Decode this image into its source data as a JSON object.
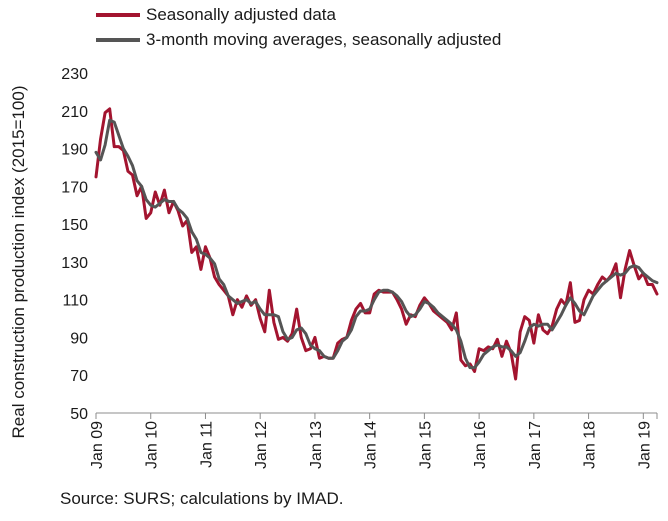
{
  "chart_data": {
    "type": "line",
    "title": "",
    "xlabel": "",
    "ylabel": "Real construction production index (2015=100)",
    "ylim": [
      50,
      230
    ],
    "yticks": [
      50,
      70,
      90,
      110,
      130,
      150,
      170,
      190,
      210,
      230
    ],
    "x_tick_labels": [
      "Jan 09",
      "Jan 10",
      "Jan 11",
      "Jan 12",
      "Jan 13",
      "Jan 14",
      "Jan 15",
      "Jan 16",
      "Jan 17",
      "Jan 18",
      "Jan 19"
    ],
    "x_start": "Jan 09",
    "frequency": "monthly",
    "grid": false,
    "legend_position": "top-left",
    "source": "Source: SURS; calculations by IMAD.",
    "series": [
      {
        "name": "Seasonally adjusted data",
        "color": "#a3142f",
        "values": [
          175,
          195,
          209,
          211,
          191,
          191,
          189,
          178,
          176,
          165,
          170,
          153,
          156,
          167,
          160,
          168,
          156,
          162,
          157,
          149,
          152,
          135,
          138,
          126,
          138,
          132,
          122,
          118,
          115,
          112,
          102,
          110,
          106,
          112,
          107,
          110,
          100,
          93,
          115,
          98,
          89,
          90,
          88,
          92,
          105,
          90,
          83,
          84,
          90,
          79,
          80,
          79,
          79,
          87,
          89,
          90,
          99,
          105,
          108,
          103,
          103,
          113,
          115,
          114,
          114,
          114,
          110,
          105,
          97,
          102,
          101,
          107,
          111,
          108,
          104,
          102,
          100,
          98,
          94,
          103,
          78,
          75,
          76,
          72,
          84,
          83,
          85,
          84,
          89,
          80,
          88,
          82,
          68,
          93,
          101,
          99,
          87,
          102,
          94,
          92,
          96,
          105,
          110,
          107,
          119,
          98,
          99,
          110,
          115,
          113,
          118,
          122,
          120,
          123,
          129,
          111,
          126,
          136,
          128,
          121,
          124,
          118,
          118,
          113
        ]
      },
      {
        "name": "3-month moving averages, seasonally adjusted",
        "color": "#555555",
        "values": [
          188,
          184,
          192,
          205,
          204,
          197,
          190,
          186,
          181,
          173,
          170,
          163,
          160,
          159,
          161,
          163,
          162,
          162,
          158,
          156,
          153,
          146,
          142,
          135,
          134,
          132,
          129,
          121,
          118,
          112,
          110,
          108,
          109,
          110,
          108,
          109,
          105,
          102,
          102,
          102,
          101,
          93,
          89,
          90,
          94,
          95,
          92,
          86,
          84,
          83,
          80,
          79,
          79,
          83,
          88,
          90,
          94,
          101,
          104,
          104,
          105,
          110,
          114,
          115,
          115,
          114,
          112,
          109,
          104,
          101,
          102,
          105,
          109,
          108,
          106,
          103,
          101,
          99,
          97,
          94,
          88,
          79,
          74,
          74,
          77,
          81,
          83,
          85,
          86,
          85,
          85,
          83,
          80,
          82,
          88,
          95,
          97,
          96,
          97,
          97,
          94,
          98,
          102,
          107,
          111,
          108,
          104,
          102,
          107,
          112,
          115,
          118,
          120,
          122,
          124,
          123,
          124,
          127,
          128,
          127,
          124,
          122,
          120,
          119
        ]
      }
    ]
  }
}
